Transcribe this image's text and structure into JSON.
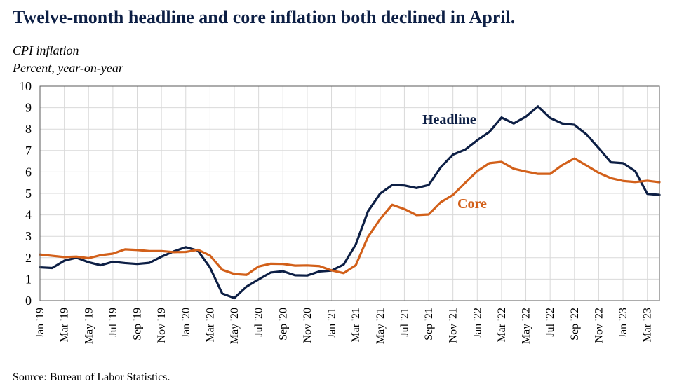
{
  "title": "Twelve-month headline and core inflation both declined in April.",
  "subtitle_1": "CPI inflation",
  "subtitle_2": "Percent, year-on-year",
  "source": "Source: Bureau of Labor Statistics.",
  "colors": {
    "headline": "#0d1f45",
    "core": "#d2601a",
    "grid": "#d9d9d9",
    "axis": "#595959"
  },
  "chart_data": {
    "type": "line",
    "title": "Twelve-month headline and core inflation both declined in April.",
    "ylabel": "Percent, year-on-year",
    "ylim": [
      0,
      10
    ],
    "yticks": [
      0,
      1,
      2,
      3,
      4,
      5,
      6,
      7,
      8,
      9,
      10
    ],
    "grid": true,
    "legend": "inline labels",
    "x": [
      "Jan '19",
      "Feb '19",
      "Mar '19",
      "Apr '19",
      "May '19",
      "Jun '19",
      "Jul '19",
      "Aug '19",
      "Sep '19",
      "Oct '19",
      "Nov '19",
      "Dec '19",
      "Jan '20",
      "Feb '20",
      "Mar '20",
      "Apr '20",
      "May '20",
      "Jun '20",
      "Jul '20",
      "Aug '20",
      "Sep '20",
      "Oct '20",
      "Nov '20",
      "Dec '20",
      "Jan '21",
      "Feb '21",
      "Mar '21",
      "Apr '21",
      "May '21",
      "Jun '21",
      "Jul '21",
      "Aug '21",
      "Sep '21",
      "Oct '21",
      "Nov '21",
      "Dec '21",
      "Jan '22",
      "Feb '22",
      "Mar '22",
      "Apr '22",
      "May '22",
      "Jun '22",
      "Jul '22",
      "Aug '22",
      "Sep '22",
      "Oct '22",
      "Nov '22",
      "Dec '22",
      "Jan '23",
      "Feb '23",
      "Mar '23",
      "Apr '23"
    ],
    "xtick_labels": [
      "Jan '19",
      "Mar '19",
      "May '19",
      "Jul '19",
      "Sep '19",
      "Nov '19",
      "Jan '20",
      "Mar '20",
      "May '20",
      "Jul '20",
      "Sep '20",
      "Nov '20",
      "Jan '21",
      "Mar '21",
      "May '21",
      "Jul '21",
      "Sep '21",
      "Nov '21",
      "Jan '22",
      "Mar '22",
      "May '22",
      "Jul '22",
      "Sep '22",
      "Nov '22",
      "Jan '23",
      "Mar '23"
    ],
    "series": [
      {
        "name": "Headline",
        "color": "#0d1f45",
        "values": [
          1.55,
          1.52,
          1.86,
          2.0,
          1.79,
          1.65,
          1.81,
          1.75,
          1.71,
          1.76,
          2.05,
          2.29,
          2.49,
          2.33,
          1.54,
          0.33,
          0.12,
          0.65,
          0.99,
          1.31,
          1.37,
          1.18,
          1.17,
          1.36,
          1.4,
          1.68,
          2.62,
          4.16,
          4.99,
          5.39,
          5.37,
          5.25,
          5.39,
          6.22,
          6.81,
          7.04,
          7.48,
          7.87,
          8.54,
          8.26,
          8.58,
          9.06,
          8.52,
          8.26,
          8.2,
          7.75,
          7.11,
          6.45,
          6.41,
          6.04,
          4.98,
          4.93
        ]
      },
      {
        "name": "Core",
        "color": "#d2601a",
        "values": [
          2.15,
          2.09,
          2.03,
          2.05,
          1.98,
          2.12,
          2.19,
          2.39,
          2.36,
          2.31,
          2.31,
          2.26,
          2.27,
          2.37,
          2.1,
          1.44,
          1.24,
          1.2,
          1.59,
          1.72,
          1.71,
          1.63,
          1.64,
          1.61,
          1.41,
          1.28,
          1.65,
          2.97,
          3.8,
          4.47,
          4.27,
          3.99,
          4.02,
          4.59,
          4.93,
          5.49,
          6.04,
          6.41,
          6.47,
          6.15,
          6.02,
          5.91,
          5.91,
          6.32,
          6.63,
          6.3,
          5.96,
          5.71,
          5.58,
          5.53,
          5.59,
          5.52
        ]
      }
    ]
  }
}
